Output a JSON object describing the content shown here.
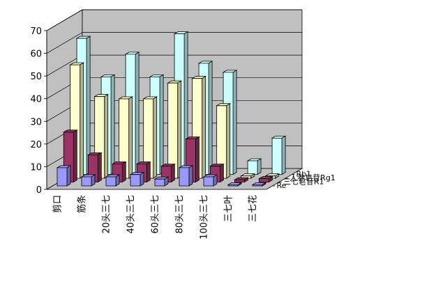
{
  "chart_data": {
    "type": "bar",
    "title": "",
    "xlabel": "",
    "ylabel": "",
    "ylim": [
      0,
      70
    ],
    "yticks": [
      "0",
      "10",
      "20",
      "30",
      "40",
      "50",
      "60",
      "70"
    ],
    "categories": [
      "剪口",
      "筋条",
      "20头三七",
      "40头三七",
      "60头三七",
      "80头三七",
      "100头三七",
      "三七叶",
      "三七花"
    ],
    "series": [
      {
        "name": "Re",
        "color": "#9999ff",
        "values": [
          8,
          4,
          4,
          5,
          3,
          8,
          4,
          0.5,
          0.5
        ]
      },
      {
        "name": "三七皂苷R1",
        "color": "#993366",
        "values": [
          22,
          12,
          8,
          8,
          7,
          19,
          7,
          1,
          1.5
        ]
      },
      {
        "name": "人参皂苷Rg1",
        "color": "#ffffcc",
        "values": [
          50,
          36,
          35,
          35,
          42,
          44,
          32,
          1,
          1
        ]
      },
      {
        "name": "Rb1",
        "color": "#ccffff",
        "values": [
          60,
          43,
          53,
          43,
          62,
          49,
          45,
          6,
          16
        ]
      }
    ],
    "legend_position": "right-of-depth-axis",
    "grid": true
  }
}
